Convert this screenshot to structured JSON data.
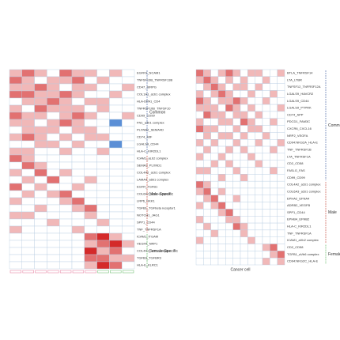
{
  "chart_data": [
    {
      "type": "heatmap",
      "colors": {
        "low": "#5b8fd6",
        "mid": "#ffffff",
        "high": "#d42a2a"
      },
      "zlim": [
        -1,
        3
      ],
      "grid_color": "#b8cde2",
      "row_groups": [
        {
          "label": "Common",
          "color": "#3d5a9e",
          "rows": [
            "EGFR1_NCAM1",
            "TNFSF13B_TNFRSF13B",
            "CD47_SIRPG",
            "COL1A1_a1b1 complex",
            "HLA-DPA1_CD4",
            "TNFRSF10B_TNFSF10",
            "CD99_CD99",
            "FN1_a4b1 complex",
            "PLXNB2_SEMA4D",
            "CD74_MIF",
            "LGALS9_CD44",
            "HLA-C_KIR2DL1"
          ],
          "values": [
            [
              1,
              2,
              1,
              0,
              2,
              1,
              1,
              0,
              1,
              0
            ],
            [
              2,
              1,
              0,
              1,
              1,
              2,
              0,
              1,
              0,
              0
            ],
            [
              1,
              1,
              2,
              1,
              0,
              1,
              1,
              0,
              0,
              1
            ],
            [
              2,
              2,
              1,
              1,
              2,
              1,
              0,
              0,
              1,
              0
            ],
            [
              0,
              1,
              1,
              2,
              1,
              0,
              1,
              1,
              0,
              0
            ],
            [
              1,
              0,
              2,
              1,
              1,
              1,
              0,
              1,
              0,
              0
            ],
            [
              2,
              1,
              1,
              0,
              1,
              2,
              1,
              0,
              0,
              1
            ],
            [
              1,
              1,
              0,
              1,
              2,
              1,
              0,
              0,
              -1,
              0
            ],
            [
              0,
              1,
              1,
              1,
              0,
              1,
              1,
              0,
              0,
              0
            ],
            [
              1,
              2,
              1,
              0,
              1,
              0,
              1,
              1,
              0,
              0
            ],
            [
              0,
              0,
              1,
              1,
              0,
              1,
              0,
              0,
              -1,
              0
            ],
            [
              1,
              1,
              0,
              0,
              1,
              0,
              0,
              1,
              0,
              0
            ]
          ]
        },
        {
          "label": "Male-Specific",
          "color": "#c0392b",
          "rows": [
            "ICAM1_aLb2 complex",
            "SEMA3_PLXND1",
            "COL4A2_a1b1 complex",
            "LAMA4_a6b1 complex",
            "EGFR_TGFB1",
            "COL6A2_a2b1 complex",
            "LRP6_DKK1",
            "TGFB1_TGFbeta receptor1",
            "NOTCH1_JAG1",
            "SPP1_CD44",
            "TNF_TNFRSF1A"
          ],
          "values": [
            [
              2,
              1,
              0,
              0,
              0,
              0,
              0,
              0,
              0,
              0
            ],
            [
              0,
              2,
              1,
              0,
              0,
              0,
              0,
              0,
              0,
              0
            ],
            [
              1,
              0,
              2,
              0,
              1,
              0,
              0,
              0,
              0,
              0
            ],
            [
              0,
              1,
              0,
              2,
              0,
              0,
              1,
              0,
              0,
              0
            ],
            [
              2,
              0,
              1,
              0,
              0,
              1,
              0,
              0,
              0,
              0
            ],
            [
              0,
              1,
              0,
              1,
              2,
              0,
              0,
              0,
              0,
              0
            ],
            [
              1,
              0,
              0,
              0,
              1,
              2,
              0,
              0,
              0,
              0
            ],
            [
              0,
              0,
              1,
              0,
              0,
              1,
              2,
              0,
              0,
              0
            ],
            [
              1,
              1,
              0,
              0,
              0,
              0,
              1,
              0,
              0,
              0
            ],
            [
              0,
              0,
              0,
              1,
              0,
              0,
              0,
              1,
              0,
              0
            ],
            [
              1,
              0,
              0,
              0,
              0,
              1,
              0,
              0,
              0,
              0
            ]
          ]
        },
        {
          "label": "Female-Specific",
          "color": "#4caf50",
          "rows": [
            "ICAM1_ITGAM",
            "VEGFA_NRP1",
            "COL4A1_a2b1 complex",
            "TGFB3_TGFBR3",
            "HLA-E_KLRC1"
          ],
          "values": [
            [
              0,
              0,
              0,
              0,
              0,
              0,
              2,
              3,
              1,
              0
            ],
            [
              0,
              0,
              0,
              0,
              0,
              0,
              1,
              2,
              3,
              1
            ],
            [
              0,
              0,
              0,
              0,
              0,
              0,
              3,
              1,
              2,
              0
            ],
            [
              0,
              0,
              0,
              0,
              0,
              0,
              2,
              2,
              1,
              1
            ],
            [
              0,
              0,
              0,
              0,
              0,
              0,
              1,
              3,
              2,
              0
            ]
          ]
        }
      ]
    },
    {
      "type": "heatmap",
      "x_label": "Cancer cell",
      "colors": {
        "low": "#5b8fd6",
        "mid": "#ffffff",
        "high": "#d42a2a"
      },
      "zlim": [
        -1,
        3
      ],
      "grid_color": "#b8cde2",
      "row_groups": [
        {
          "label": "Common",
          "color": "#3d5a9e",
          "rows": [
            "BTLA_TNFRSF14",
            "LTA_LTBR",
            "TNFSF12_TNFRSF12A",
            "LGALS9_HAVCR2",
            "LGALS9_CD44",
            "LGALS9_PTPRK",
            "CD74_APP",
            "PDCD1_FAM3C",
            "CXCR6_CXCL16",
            "NRP2_VEGFA",
            "CD94:NKG2A_HLA-E",
            "TNF_TNFRSF1B",
            "LTA_TNFRSF1A",
            "CD2_CD58",
            "FASLG_FAS",
            "CD99_CD99"
          ],
          "values": [
            [
              2,
              1,
              0,
              1,
              2,
              1,
              0,
              1,
              1,
              0,
              0,
              1
            ],
            [
              1,
              2,
              1,
              0,
              1,
              0,
              1,
              0,
              0,
              1,
              0,
              0
            ],
            [
              0,
              1,
              2,
              1,
              0,
              1,
              1,
              0,
              1,
              0,
              0,
              0
            ],
            [
              1,
              0,
              1,
              2,
              1,
              0,
              0,
              1,
              0,
              0,
              1,
              0
            ],
            [
              2,
              1,
              0,
              1,
              1,
              2,
              1,
              0,
              0,
              1,
              0,
              0
            ],
            [
              1,
              1,
              1,
              0,
              2,
              1,
              0,
              1,
              0,
              0,
              0,
              1
            ],
            [
              0,
              2,
              1,
              1,
              0,
              1,
              1,
              0,
              1,
              0,
              0,
              0
            ],
            [
              1,
              0,
              0,
              1,
              1,
              0,
              2,
              1,
              0,
              0,
              1,
              0
            ],
            [
              2,
              1,
              1,
              0,
              0,
              1,
              0,
              1,
              1,
              0,
              0,
              0
            ],
            [
              0,
              1,
              0,
              1,
              1,
              0,
              1,
              0,
              0,
              1,
              0,
              0
            ],
            [
              1,
              0,
              1,
              0,
              0,
              1,
              0,
              0,
              1,
              0,
              0,
              1
            ],
            [
              0,
              1,
              0,
              0,
              1,
              0,
              1,
              0,
              0,
              0,
              1,
              0
            ],
            [
              1,
              0,
              0,
              1,
              0,
              0,
              0,
              1,
              0,
              0,
              0,
              0
            ],
            [
              0,
              0,
              1,
              0,
              1,
              0,
              0,
              0,
              1,
              0,
              0,
              0
            ],
            [
              1,
              1,
              0,
              0,
              0,
              1,
              0,
              0,
              0,
              0,
              1,
              0
            ],
            [
              0,
              0,
              0,
              1,
              0,
              0,
              1,
              0,
              0,
              0,
              0,
              0
            ]
          ]
        },
        {
          "label": "Male",
          "color": "#c0392b",
          "rows": [
            "COL4A2_a1b1 complex",
            "COL6A3_a1b1 complex",
            "EPHA2_EFNA4",
            "ADRB2_VEGFB",
            "SPP1_CD44",
            "EPHB4_EFNB2",
            "HLA-C_KIR2DL1",
            "TNF_TNFRSF1A",
            "ICAM1_aXb2 complex"
          ],
          "values": [
            [
              2,
              1,
              0,
              0,
              0,
              0,
              0,
              0,
              0,
              0,
              0,
              0
            ],
            [
              1,
              2,
              0,
              1,
              0,
              0,
              0,
              0,
              0,
              0,
              0,
              0
            ],
            [
              0,
              1,
              2,
              0,
              0,
              1,
              0,
              0,
              0,
              0,
              0,
              0
            ],
            [
              1,
              0,
              1,
              2,
              0,
              0,
              0,
              0,
              0,
              0,
              0,
              0
            ],
            [
              0,
              0,
              0,
              1,
              2,
              0,
              0,
              0,
              0,
              0,
              0,
              0
            ],
            [
              1,
              0,
              0,
              0,
              1,
              1,
              0,
              0,
              0,
              0,
              0,
              0
            ],
            [
              0,
              1,
              0,
              0,
              0,
              2,
              1,
              0,
              0,
              0,
              0,
              0
            ],
            [
              0,
              0,
              1,
              0,
              0,
              0,
              1,
              0,
              0,
              0,
              0,
              0
            ],
            [
              1,
              0,
              0,
              0,
              0,
              0,
              0,
              1,
              0,
              0,
              0,
              0
            ]
          ]
        },
        {
          "label": "Female",
          "color": "#4caf50",
          "rows": [
            "CD2_CD58",
            "TGFB1_aVb6 complex",
            "CD94:NKG2C_HLA-E"
          ],
          "values": [
            [
              0,
              0,
              0,
              0,
              0,
              0,
              0,
              0,
              0,
              1,
              2,
              0
            ],
            [
              0,
              0,
              0,
              0,
              0,
              0,
              0,
              0,
              0,
              0,
              1,
              2
            ],
            [
              0,
              0,
              0,
              0,
              0,
              0,
              0,
              0,
              0,
              1,
              0,
              1
            ]
          ]
        }
      ]
    }
  ]
}
